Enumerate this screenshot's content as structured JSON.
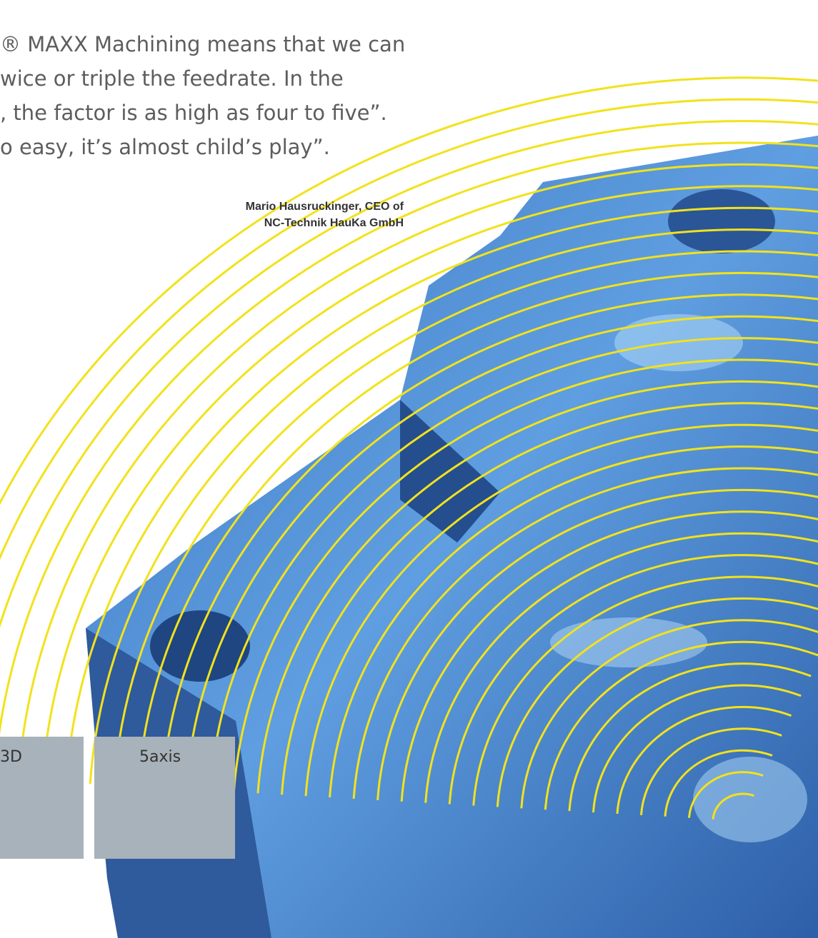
{
  "quote": {
    "lines": [
      "® MAXX Machining means that we can",
      "wice or triple the feedrate. In the",
      ", the factor is as high as four to five”.",
      "o easy, it’s almost child’s play”."
    ]
  },
  "attribution": {
    "lines": [
      "Mario Hausruckinger, CEO of",
      "NC-Technik HauKa GmbH"
    ]
  },
  "boxes": [
    {
      "label": "3D"
    },
    {
      "label": "5axis"
    }
  ]
}
